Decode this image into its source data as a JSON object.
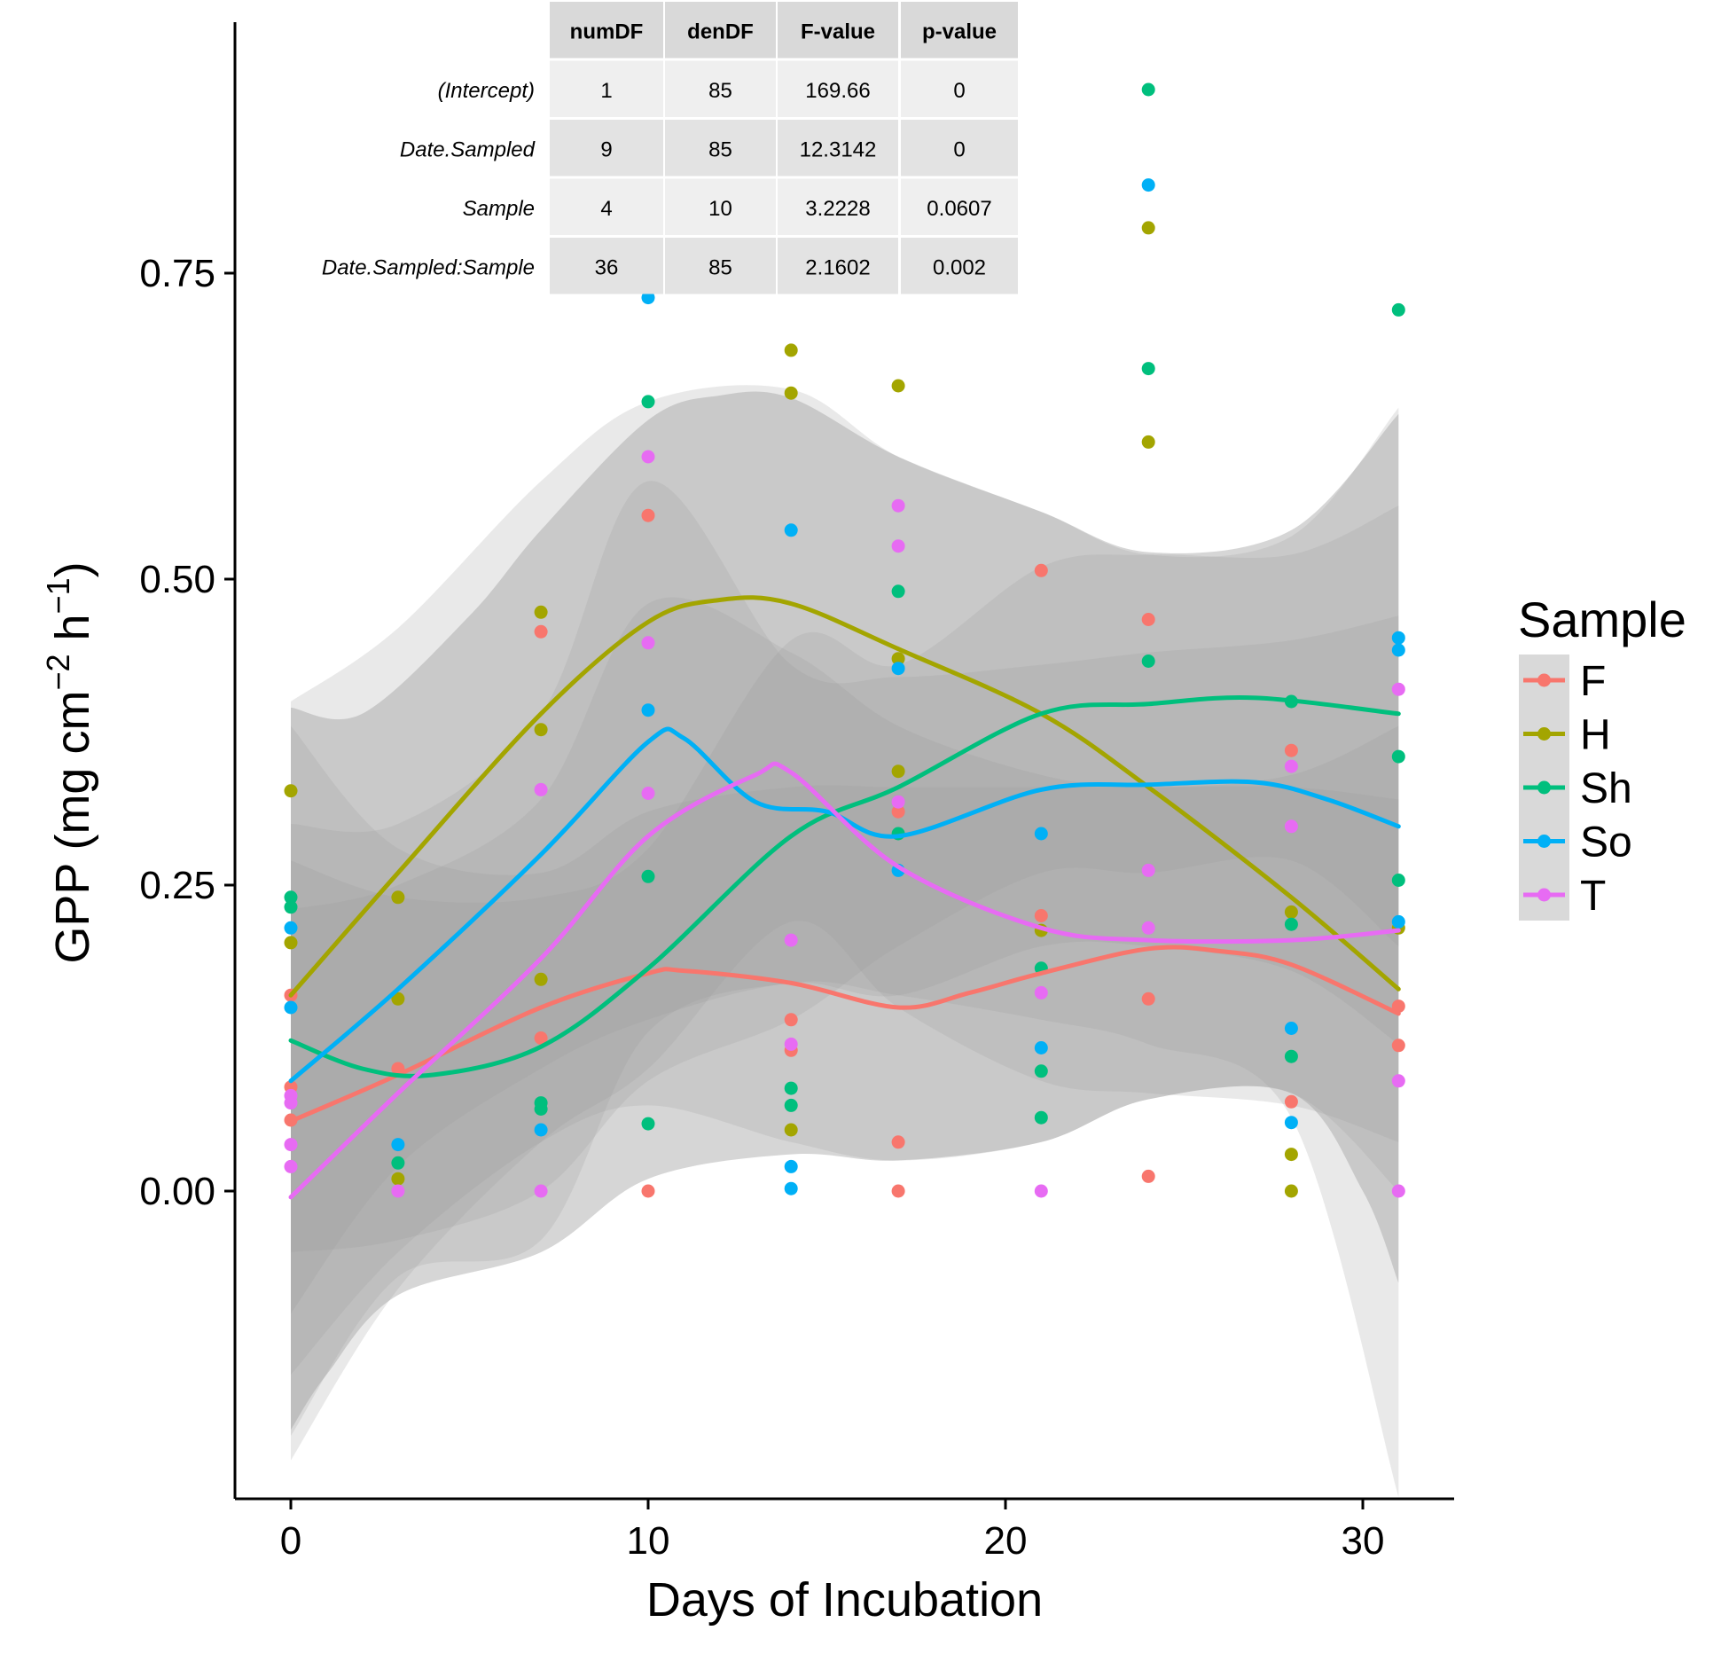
{
  "chart_data": {
    "type": "scatter",
    "xlabel": "Days of Incubation",
    "ylabel": "GPP (mg cm",
    "ylabel_sup1": "−2",
    "ylabel_mid": " h",
    "ylabel_sup2": "−1",
    "ylabel_end": ")",
    "xlim": [
      -1.5,
      32.5
    ],
    "ylim": [
      -0.245,
      0.955
    ],
    "x_ticks": [
      0,
      10,
      20,
      30
    ],
    "x_tick_labels": [
      "0",
      "10",
      "20",
      "30"
    ],
    "y_ticks": [
      0,
      0.25,
      0.5,
      0.75
    ],
    "y_tick_labels": [
      "0.00",
      "0.25",
      "0.50",
      "0.75"
    ],
    "grid": false,
    "legend": {
      "title": "Sample",
      "position": "right",
      "entries": [
        "F",
        "H",
        "Sh",
        "So",
        "T"
      ]
    },
    "series": [
      {
        "name": "F",
        "color": "#F8766D",
        "points": [
          [
            0,
            0.16
          ],
          [
            0,
            0.085
          ],
          [
            0,
            0.058
          ],
          [
            3,
            0.1
          ],
          [
            7,
            0.457
          ],
          [
            7,
            0.125
          ],
          [
            10,
            0.552
          ],
          [
            10,
            0.0
          ],
          [
            14,
            0.14
          ],
          [
            14,
            0.115
          ],
          [
            17,
            0.31
          ],
          [
            17,
            0.04
          ],
          [
            17,
            0.0
          ],
          [
            21,
            0.507
          ],
          [
            21,
            0.225
          ],
          [
            24,
            0.467
          ],
          [
            24,
            0.157
          ],
          [
            24,
            0.012
          ],
          [
            28,
            0.36
          ],
          [
            28,
            0.073
          ],
          [
            31,
            0.151
          ],
          [
            31,
            0.119
          ]
        ],
        "smooth": [
          [
            0,
            0.057
          ],
          [
            3,
            0.095
          ],
          [
            7,
            0.15
          ],
          [
            10,
            0.178
          ],
          [
            11,
            0.18
          ],
          [
            14,
            0.17
          ],
          [
            17,
            0.15
          ],
          [
            19,
            0.162
          ],
          [
            21,
            0.178
          ],
          [
            24,
            0.198
          ],
          [
            26,
            0.196
          ],
          [
            28,
            0.185
          ],
          [
            31,
            0.145
          ]
        ],
        "ribbon_upper": [
          [
            0,
            0.38
          ],
          [
            3,
            0.28
          ],
          [
            7,
            0.26
          ],
          [
            10,
            0.31
          ],
          [
            14,
            0.33
          ],
          [
            17,
            0.33
          ],
          [
            21,
            0.33
          ],
          [
            24,
            0.33
          ],
          [
            28,
            0.33
          ],
          [
            31,
            0.32
          ]
        ],
        "ribbon_lower": [
          [
            0,
            -0.15
          ],
          [
            3,
            -0.05
          ],
          [
            7,
            0.04
          ],
          [
            10,
            0.07
          ],
          [
            14,
            0.04
          ],
          [
            17,
            0.025
          ],
          [
            21,
            0.04
          ],
          [
            24,
            0.075
          ],
          [
            28,
            0.08
          ],
          [
            31,
            0.0
          ]
        ]
      },
      {
        "name": "H",
        "color": "#A3A500",
        "points": [
          [
            0,
            0.327
          ],
          [
            0,
            0.203
          ],
          [
            3,
            0.24
          ],
          [
            3,
            0.157
          ],
          [
            3,
            0.01
          ],
          [
            7,
            0.473
          ],
          [
            7,
            0.377
          ],
          [
            7,
            0.173
          ],
          [
            14,
            0.687
          ],
          [
            14,
            0.652
          ],
          [
            14,
            0.05
          ],
          [
            17,
            0.658
          ],
          [
            17,
            0.435
          ],
          [
            17,
            0.343
          ],
          [
            21,
            0.213
          ],
          [
            24,
            0.787
          ],
          [
            24,
            0.612
          ],
          [
            28,
            0.228
          ],
          [
            28,
            0.03
          ],
          [
            28,
            0.0
          ],
          [
            31,
            0.215
          ]
        ],
        "smooth": [
          [
            0,
            0.16
          ],
          [
            3,
            0.26
          ],
          [
            7,
            0.39
          ],
          [
            10,
            0.465
          ],
          [
            12,
            0.483
          ],
          [
            14,
            0.48
          ],
          [
            17,
            0.443
          ],
          [
            21,
            0.39
          ],
          [
            24,
            0.33
          ],
          [
            28,
            0.24
          ],
          [
            31,
            0.165
          ]
        ],
        "ribbon_upper": [
          [
            0,
            0.4
          ],
          [
            3,
            0.46
          ],
          [
            7,
            0.58
          ],
          [
            10,
            0.645
          ],
          [
            14,
            0.655
          ],
          [
            17,
            0.6
          ],
          [
            21,
            0.555
          ],
          [
            24,
            0.52
          ],
          [
            28,
            0.535
          ],
          [
            31,
            0.64
          ]
        ],
        "ribbon_lower": [
          [
            0,
            -0.2
          ],
          [
            3,
            -0.07
          ],
          [
            7,
            -0.04
          ],
          [
            10,
            0.13
          ],
          [
            14,
            0.17
          ],
          [
            17,
            0.16
          ],
          [
            21,
            0.14
          ],
          [
            24,
            0.12
          ],
          [
            28,
            0.06
          ],
          [
            31,
            -0.25
          ]
        ]
      },
      {
        "name": "Sh",
        "color": "#00BF7D",
        "points": [
          [
            0,
            0.24
          ],
          [
            0,
            0.232
          ],
          [
            3,
            0.023
          ],
          [
            7,
            0.072
          ],
          [
            7,
            0.067
          ],
          [
            10,
            0.645
          ],
          [
            10,
            0.257
          ],
          [
            10,
            0.055
          ],
          [
            14,
            0.084
          ],
          [
            14,
            0.07
          ],
          [
            17,
            0.49
          ],
          [
            17,
            0.292
          ],
          [
            21,
            0.182
          ],
          [
            21,
            0.098
          ],
          [
            21,
            0.06
          ],
          [
            24,
            0.9
          ],
          [
            24,
            0.672
          ],
          [
            24,
            0.433
          ],
          [
            28,
            0.4
          ],
          [
            28,
            0.218
          ],
          [
            28,
            0.11
          ],
          [
            31,
            0.72
          ],
          [
            31,
            0.355
          ],
          [
            31,
            0.254
          ]
        ],
        "smooth": [
          [
            0,
            0.123
          ],
          [
            2,
            0.1
          ],
          [
            4,
            0.095
          ],
          [
            7,
            0.118
          ],
          [
            10,
            0.182
          ],
          [
            14,
            0.29
          ],
          [
            17,
            0.33
          ],
          [
            21,
            0.39
          ],
          [
            24,
            0.398
          ],
          [
            27,
            0.403
          ],
          [
            31,
            0.39
          ]
        ],
        "ribbon_upper": [
          [
            0,
            0.27
          ],
          [
            3,
            0.24
          ],
          [
            7,
            0.24
          ],
          [
            10,
            0.28
          ],
          [
            14,
            0.45
          ],
          [
            17,
            0.43
          ],
          [
            21,
            0.51
          ],
          [
            24,
            0.52
          ],
          [
            28,
            0.52
          ],
          [
            31,
            0.56
          ]
        ],
        "ribbon_lower": [
          [
            0,
            -0.05
          ],
          [
            3,
            -0.04
          ],
          [
            7,
            0.0
          ],
          [
            10,
            0.09
          ],
          [
            14,
            0.14
          ],
          [
            17,
            0.2
          ],
          [
            21,
            0.26
          ],
          [
            24,
            0.26
          ],
          [
            28,
            0.27
          ],
          [
            31,
            0.2
          ]
        ]
      },
      {
        "name": "So",
        "color": "#00B0F6",
        "points": [
          [
            0,
            0.215
          ],
          [
            0,
            0.15
          ],
          [
            3,
            0.038
          ],
          [
            7,
            0.05
          ],
          [
            10,
            0.73
          ],
          [
            10,
            0.393
          ],
          [
            14,
            0.54
          ],
          [
            14,
            0.02
          ],
          [
            14,
            0.002
          ],
          [
            17,
            0.427
          ],
          [
            17,
            0.262
          ],
          [
            21,
            0.292
          ],
          [
            21,
            0.117
          ],
          [
            24,
            0.822
          ],
          [
            28,
            0.133
          ],
          [
            28,
            0.056
          ],
          [
            31,
            0.452
          ],
          [
            31,
            0.442
          ],
          [
            31,
            0.22
          ]
        ],
        "smooth": [
          [
            0,
            0.09
          ],
          [
            3,
            0.165
          ],
          [
            7,
            0.275
          ],
          [
            10,
            0.367
          ],
          [
            11,
            0.37
          ],
          [
            13,
            0.318
          ],
          [
            15,
            0.31
          ],
          [
            17,
            0.29
          ],
          [
            21,
            0.328
          ],
          [
            24,
            0.332
          ],
          [
            27,
            0.334
          ],
          [
            29,
            0.32
          ],
          [
            31,
            0.298
          ]
        ],
        "ribbon_upper": [
          [
            0,
            0.3
          ],
          [
            3,
            0.3
          ],
          [
            7,
            0.39
          ],
          [
            10,
            0.58
          ],
          [
            14,
            0.43
          ],
          [
            17,
            0.42
          ],
          [
            21,
            0.43
          ],
          [
            24,
            0.44
          ],
          [
            28,
            0.45
          ],
          [
            31,
            0.47
          ]
        ],
        "ribbon_lower": [
          [
            0,
            -0.1
          ],
          [
            3,
            0.02
          ],
          [
            7,
            0.1
          ],
          [
            10,
            0.14
          ],
          [
            14,
            0.17
          ],
          [
            17,
            0.16
          ],
          [
            21,
            0.2
          ],
          [
            24,
            0.2
          ],
          [
            28,
            0.18
          ],
          [
            31,
            0.12
          ]
        ]
      },
      {
        "name": "T",
        "color": "#E76BF3",
        "points": [
          [
            0,
            0.078
          ],
          [
            0,
            0.072
          ],
          [
            0,
            0.038
          ],
          [
            0,
            0.02
          ],
          [
            3,
            0.0
          ],
          [
            7,
            0.328
          ],
          [
            7,
            0.0
          ],
          [
            10,
            0.6
          ],
          [
            10,
            0.448
          ],
          [
            10,
            0.325
          ],
          [
            14,
            0.205
          ],
          [
            14,
            0.12
          ],
          [
            17,
            0.56
          ],
          [
            17,
            0.527
          ],
          [
            17,
            0.318
          ],
          [
            21,
            0.162
          ],
          [
            21,
            0.0
          ],
          [
            24,
            0.262
          ],
          [
            24,
            0.215
          ],
          [
            28,
            0.347
          ],
          [
            28,
            0.298
          ],
          [
            31,
            0.41
          ],
          [
            31,
            0.09
          ],
          [
            31,
            0.0
          ]
        ],
        "smooth": [
          [
            0,
            -0.005
          ],
          [
            3,
            0.08
          ],
          [
            7,
            0.19
          ],
          [
            10,
            0.29
          ],
          [
            13,
            0.34
          ],
          [
            14,
            0.342
          ],
          [
            17,
            0.265
          ],
          [
            21,
            0.215
          ],
          [
            24,
            0.205
          ],
          [
            28,
            0.205
          ],
          [
            31,
            0.213
          ]
        ],
        "ribbon_upper": [
          [
            0,
            0.23
          ],
          [
            3,
            0.25
          ],
          [
            7,
            0.32
          ],
          [
            10,
            0.48
          ],
          [
            14,
            0.44
          ],
          [
            17,
            0.38
          ],
          [
            21,
            0.34
          ],
          [
            24,
            0.33
          ],
          [
            28,
            0.34
          ],
          [
            31,
            0.38
          ]
        ],
        "ribbon_lower": [
          [
            0,
            -0.22
          ],
          [
            3,
            -0.08
          ],
          [
            7,
            0.04
          ],
          [
            10,
            0.1
          ],
          [
            14,
            0.22
          ],
          [
            17,
            0.15
          ],
          [
            21,
            0.09
          ],
          [
            24,
            0.08
          ],
          [
            28,
            0.07
          ],
          [
            31,
            0.04
          ]
        ]
      }
    ],
    "outer_band": {
      "upper": [
        [
          0,
          0.395
        ],
        [
          2,
          0.39
        ],
        [
          5,
          0.47
        ],
        [
          7,
          0.54
        ],
        [
          10,
          0.63
        ],
        [
          12,
          0.65
        ],
        [
          14,
          0.648
        ],
        [
          17,
          0.6
        ],
        [
          21,
          0.555
        ],
        [
          24,
          0.522
        ],
        [
          28,
          0.54
        ],
        [
          31,
          0.635
        ]
      ],
      "lower": [
        [
          0,
          -0.195
        ],
        [
          1,
          -0.15
        ],
        [
          3,
          -0.085
        ],
        [
          7,
          -0.05
        ],
        [
          10,
          0.01
        ],
        [
          14,
          0.03
        ],
        [
          17,
          0.025
        ],
        [
          21,
          0.04
        ],
        [
          24,
          0.075
        ],
        [
          28,
          0.08
        ],
        [
          30,
          0.0
        ],
        [
          31,
          -0.075
        ]
      ]
    },
    "anova_table": {
      "headers": [
        "numDF",
        "denDF",
        "F-value",
        "p-value"
      ],
      "rows": [
        {
          "label": "(Intercept)",
          "cells": [
            "1",
            "85",
            "169.66",
            "0"
          ]
        },
        {
          "label": "Date.Sampled",
          "cells": [
            "9",
            "85",
            "12.3142",
            "0"
          ]
        },
        {
          "label": "Sample",
          "cells": [
            "4",
            "10",
            "3.2228",
            "0.0607"
          ]
        },
        {
          "label": "Date.Sampled:Sample",
          "cells": [
            "36",
            "85",
            "2.1602",
            "0.002"
          ]
        }
      ]
    }
  }
}
